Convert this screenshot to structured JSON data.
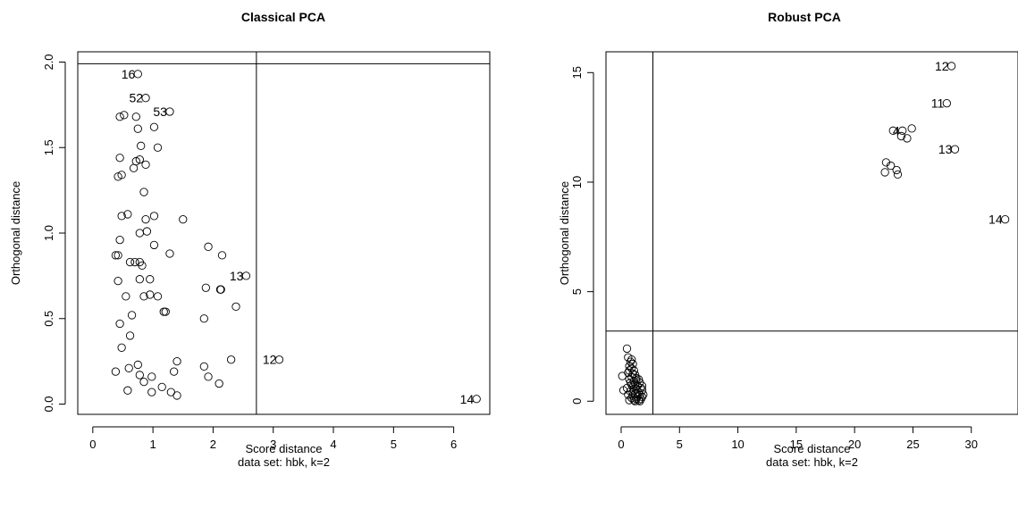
{
  "chart_data": [
    {
      "type": "scatter",
      "title": "Classical PCA",
      "xlabel": "Score distance",
      "subtitle": "data set: hbk, k=2",
      "ylabel": "Orthogonal distance",
      "xlim": [
        -0.25,
        6.6
      ],
      "ylim": [
        -0.06,
        2.06
      ],
      "xticks": [
        0,
        1,
        2,
        3,
        4,
        5,
        6
      ],
      "yticks": [
        0.0,
        0.5,
        1.0,
        1.5,
        2.0
      ],
      "ytick_labels": [
        "0.0",
        "0.5",
        "1.0",
        "1.5",
        "2.0"
      ],
      "cutoff_x": 2.72,
      "cutoff_y": 1.99,
      "points": [
        [
          0.75,
          1.93
        ],
        [
          0.88,
          1.79
        ],
        [
          1.28,
          1.71
        ],
        [
          0.45,
          1.68
        ],
        [
          0.52,
          1.69
        ],
        [
          0.72,
          1.68
        ],
        [
          1.02,
          1.62
        ],
        [
          0.75,
          1.61
        ],
        [
          0.8,
          1.51
        ],
        [
          1.08,
          1.5
        ],
        [
          0.45,
          1.44
        ],
        [
          0.72,
          1.42
        ],
        [
          0.78,
          1.43
        ],
        [
          0.88,
          1.4
        ],
        [
          0.68,
          1.38
        ],
        [
          0.42,
          1.33
        ],
        [
          0.48,
          1.34
        ],
        [
          0.85,
          1.24
        ],
        [
          0.48,
          1.1
        ],
        [
          0.58,
          1.11
        ],
        [
          1.02,
          1.1
        ],
        [
          1.5,
          1.08
        ],
        [
          0.88,
          1.08
        ],
        [
          0.9,
          1.01
        ],
        [
          0.78,
          1.0
        ],
        [
          0.45,
          0.96
        ],
        [
          1.02,
          0.93
        ],
        [
          1.92,
          0.92
        ],
        [
          0.38,
          0.87
        ],
        [
          0.42,
          0.87
        ],
        [
          2.15,
          0.87
        ],
        [
          1.28,
          0.88
        ],
        [
          0.62,
          0.83
        ],
        [
          0.7,
          0.83
        ],
        [
          0.78,
          0.83
        ],
        [
          0.82,
          0.81
        ],
        [
          2.55,
          0.75
        ],
        [
          0.95,
          0.73
        ],
        [
          0.78,
          0.73
        ],
        [
          0.42,
          0.72
        ],
        [
          1.88,
          0.68
        ],
        [
          2.12,
          0.67
        ],
        [
          2.13,
          0.67
        ],
        [
          0.55,
          0.63
        ],
        [
          0.85,
          0.63
        ],
        [
          0.95,
          0.64
        ],
        [
          1.08,
          0.63
        ],
        [
          2.38,
          0.57
        ],
        [
          1.18,
          0.54
        ],
        [
          1.21,
          0.54
        ],
        [
          0.65,
          0.52
        ],
        [
          1.85,
          0.5
        ],
        [
          0.45,
          0.47
        ],
        [
          0.62,
          0.4
        ],
        [
          0.48,
          0.33
        ],
        [
          1.4,
          0.25
        ],
        [
          2.3,
          0.26
        ],
        [
          3.1,
          0.26
        ],
        [
          0.75,
          0.23
        ],
        [
          0.6,
          0.21
        ],
        [
          1.85,
          0.22
        ],
        [
          0.38,
          0.19
        ],
        [
          1.35,
          0.19
        ],
        [
          0.78,
          0.17
        ],
        [
          0.98,
          0.16
        ],
        [
          1.92,
          0.16
        ],
        [
          0.85,
          0.13
        ],
        [
          2.1,
          0.12
        ],
        [
          1.15,
          0.1
        ],
        [
          0.58,
          0.08
        ],
        [
          0.98,
          0.07
        ],
        [
          1.3,
          0.07
        ],
        [
          1.4,
          0.05
        ],
        [
          6.38,
          0.03
        ]
      ],
      "labels": [
        {
          "text": "16",
          "x": 0.75,
          "y": 1.93
        },
        {
          "text": "52",
          "x": 0.88,
          "y": 1.79
        },
        {
          "text": "53",
          "x": 1.28,
          "y": 1.71
        },
        {
          "text": "13",
          "x": 2.55,
          "y": 0.75
        },
        {
          "text": "12",
          "x": 3.1,
          "y": 0.26
        },
        {
          "text": "14",
          "x": 6.38,
          "y": 0.03
        }
      ]
    },
    {
      "type": "scatter",
      "title": "Robust PCA",
      "xlabel": "Score distance",
      "subtitle": "data set: hbk, k=2",
      "ylabel": "Orthogonal distance",
      "xlim": [
        -1.3,
        34.0
      ],
      "ylim": [
        -0.6,
        15.95
      ],
      "xticks": [
        0,
        5,
        10,
        15,
        20,
        25,
        30
      ],
      "yticks": [
        0,
        5,
        10,
        15
      ],
      "ytick_labels": [
        "0",
        "5",
        "10",
        "15"
      ],
      "cutoff_x": 2.72,
      "cutoff_y": 3.2,
      "points": [
        [
          28.3,
          15.3
        ],
        [
          27.9,
          13.6
        ],
        [
          23.3,
          12.35
        ],
        [
          24.0,
          12.1
        ],
        [
          24.1,
          12.35
        ],
        [
          24.9,
          12.45
        ],
        [
          24.5,
          12.0
        ],
        [
          28.6,
          11.5
        ],
        [
          22.7,
          10.9
        ],
        [
          23.1,
          10.75
        ],
        [
          23.6,
          10.55
        ],
        [
          22.6,
          10.45
        ],
        [
          23.7,
          10.35
        ],
        [
          32.9,
          8.3
        ],
        [
          0.5,
          2.4
        ],
        [
          0.6,
          2.0
        ],
        [
          0.9,
          1.9
        ],
        [
          0.8,
          1.8
        ],
        [
          1.0,
          1.7
        ],
        [
          0.7,
          1.6
        ],
        [
          0.9,
          1.5
        ],
        [
          1.1,
          1.4
        ],
        [
          0.6,
          1.3
        ],
        [
          1.0,
          1.25
        ],
        [
          0.1,
          1.15
        ],
        [
          1.2,
          1.2
        ],
        [
          0.9,
          1.1
        ],
        [
          1.5,
          1.0
        ],
        [
          0.7,
          1.0
        ],
        [
          1.3,
          0.95
        ],
        [
          1.1,
          0.9
        ],
        [
          0.8,
          0.85
        ],
        [
          1.6,
          0.85
        ],
        [
          1.2,
          0.8
        ],
        [
          0.9,
          0.75
        ],
        [
          1.4,
          0.7
        ],
        [
          1.0,
          0.65
        ],
        [
          1.7,
          0.6
        ],
        [
          1.3,
          0.55
        ],
        [
          0.2,
          0.5
        ],
        [
          1.1,
          0.5
        ],
        [
          1.8,
          0.5
        ],
        [
          0.8,
          0.45
        ],
        [
          1.5,
          0.4
        ],
        [
          1.2,
          0.35
        ],
        [
          0.6,
          0.3
        ],
        [
          1.6,
          0.3
        ],
        [
          1.0,
          0.25
        ],
        [
          1.4,
          0.2
        ],
        [
          1.8,
          0.2
        ],
        [
          0.9,
          0.15
        ],
        [
          1.3,
          0.1
        ],
        [
          1.7,
          0.1
        ],
        [
          1.1,
          0.05
        ],
        [
          1.5,
          0.05
        ],
        [
          0.7,
          0.05
        ],
        [
          1.2,
          0.0
        ],
        [
          1.6,
          0.0
        ],
        [
          1.9,
          0.3
        ],
        [
          1.0,
          0.4
        ],
        [
          0.5,
          0.6
        ],
        [
          1.8,
          0.7
        ],
        [
          1.3,
          1.05
        ],
        [
          0.7,
          1.4
        ]
      ],
      "labels": [
        {
          "text": "12",
          "x": 28.3,
          "y": 15.3
        },
        {
          "text": "11",
          "x": 27.9,
          "y": 13.6
        },
        {
          "text": "4",
          "x": 24.1,
          "y": 12.35
        },
        {
          "text": "13",
          "x": 28.6,
          "y": 11.5
        },
        {
          "text": "14",
          "x": 32.9,
          "y": 8.3
        }
      ]
    }
  ]
}
